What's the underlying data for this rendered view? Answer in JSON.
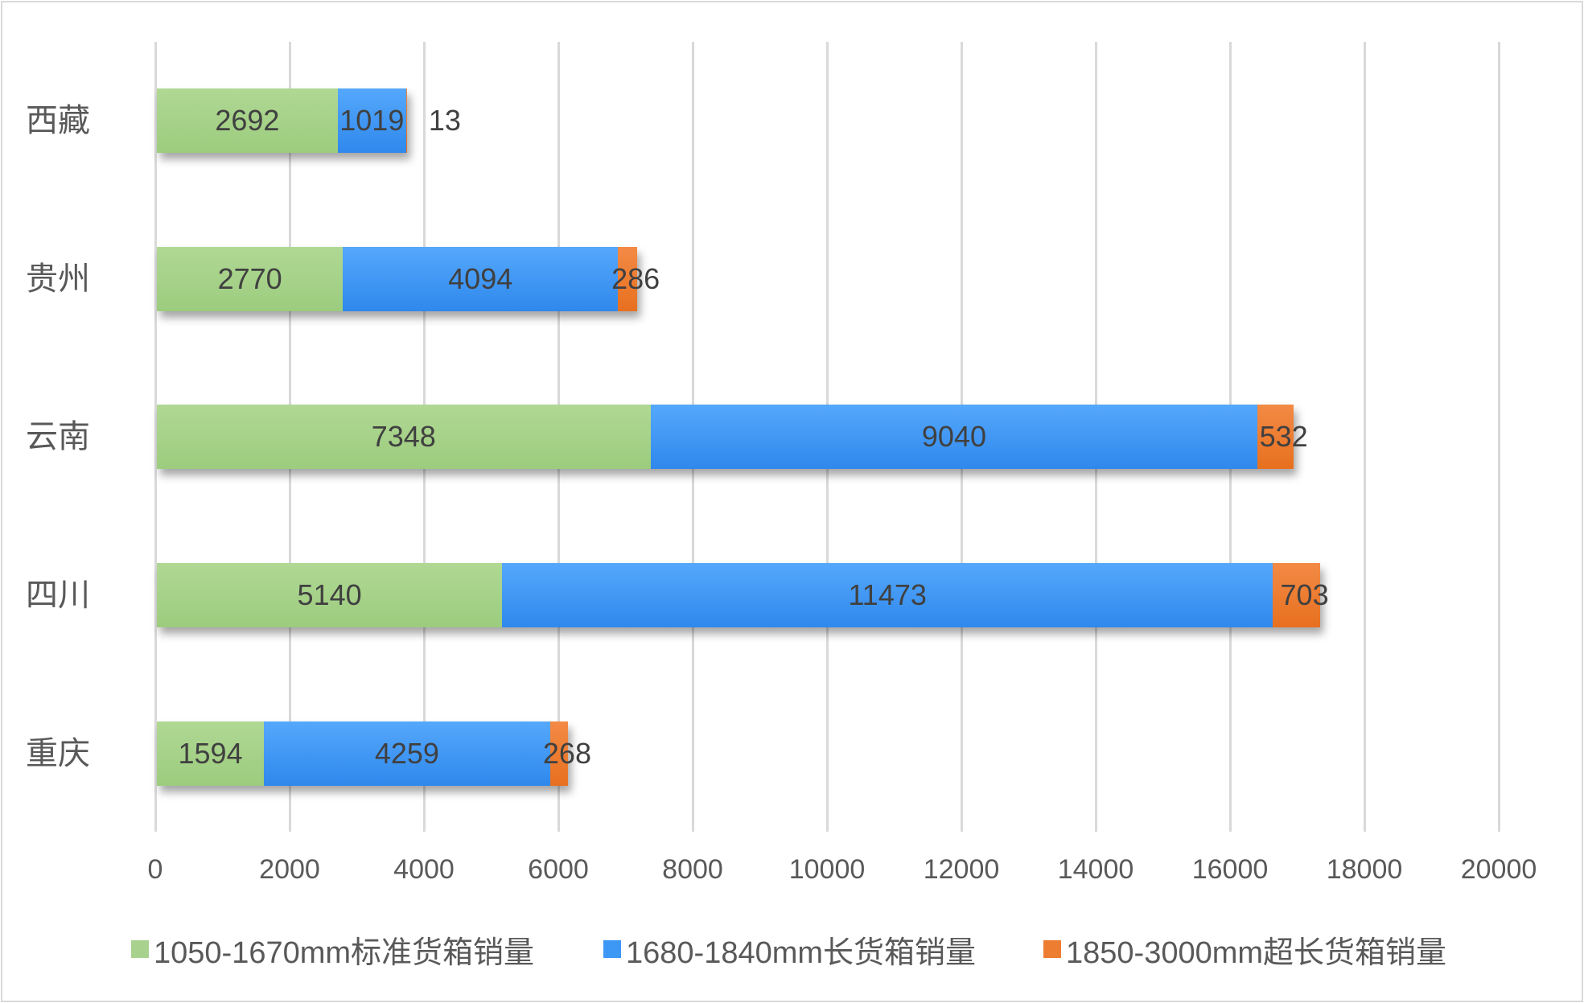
{
  "chart_data": {
    "type": "bar",
    "orientation": "horizontal",
    "stacked": true,
    "title": "",
    "xlabel": "",
    "ylabel": "",
    "categories": [
      "西藏",
      "贵州",
      "云南",
      "四川",
      "重庆"
    ],
    "series": [
      {
        "name": "1050-1670mm标准货箱销量",
        "color": "#a9d18e",
        "values": [
          2692,
          2770,
          7348,
          5140,
          1594
        ]
      },
      {
        "name": "1680-1840mm长货箱销量",
        "color": "#3d97f5",
        "values": [
          1019,
          4094,
          9040,
          11473,
          4259
        ]
      },
      {
        "name": "1850-3000mm超长货箱销量",
        "color": "#ed7d31",
        "values": [
          13,
          286,
          532,
          703,
          268
        ]
      }
    ],
    "xlim": [
      0,
      20000
    ],
    "x_ticks": [
      "0",
      "2000",
      "4000",
      "6000",
      "8000",
      "10000",
      "12000",
      "14000",
      "16000",
      "18000",
      "20000"
    ],
    "grid": "vertical",
    "legend_position": "bottom",
    "data_labels": true
  },
  "labels": {
    "cats": [
      "西藏",
      "贵州",
      "云南",
      "四川",
      "重庆"
    ],
    "ticks": [
      "0",
      "2000",
      "4000",
      "6000",
      "8000",
      "10000",
      "12000",
      "14000",
      "16000",
      "18000",
      "20000"
    ],
    "legend": [
      "1050-1670mm标准货箱销量",
      "1680-1840mm长货箱销量",
      "1850-3000mm超长货箱销量"
    ],
    "values": {
      "r0": [
        "2692",
        "1019",
        "13"
      ],
      "r1": [
        "2770",
        "4094",
        "286"
      ],
      "r2": [
        "7348",
        "9040",
        "532"
      ],
      "r3": [
        "5140",
        "11473",
        "703"
      ],
      "r4": [
        "1594",
        "4259",
        "268"
      ]
    }
  }
}
